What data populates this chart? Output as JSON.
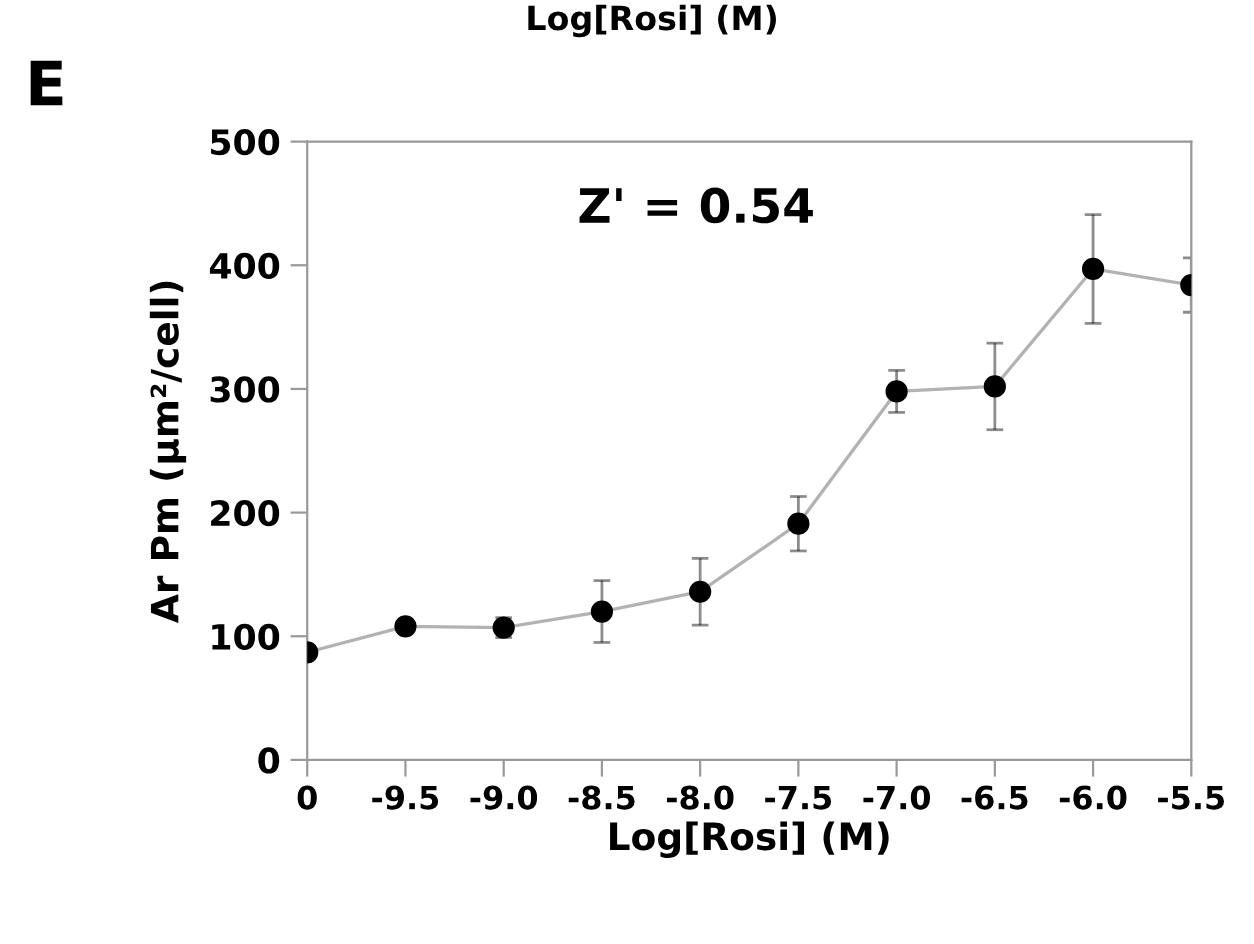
{
  "chart_data": {
    "type": "line",
    "ylabel": "Ar Pm (µm²/cell)",
    "xlabel": "Log[Rosi] (M)",
    "categories": [
      "0",
      "-9.5",
      "-9.0",
      "-8.5",
      "-8.0",
      "-7.5",
      "-7.0",
      "-6.5",
      "-6.0",
      "-5.5"
    ],
    "series": [
      {
        "color": "#000000",
        "values": [
          87,
          108,
          107,
          120,
          136,
          191,
          298,
          302,
          397,
          384
        ],
        "errors": [
          5,
          5,
          8,
          25,
          27,
          22,
          17,
          35,
          44,
          22
        ]
      }
    ],
    "ylim": [
      0,
      500
    ],
    "yticks": [
      0,
      100,
      200,
      300,
      400,
      500
    ],
    "marker": "circle",
    "line_style": "solid",
    "grid": false,
    "legend": false,
    "annotations": [
      "Z' = 0.54",
      "E",
      "Log[Rosi] (M)"
    ]
  }
}
